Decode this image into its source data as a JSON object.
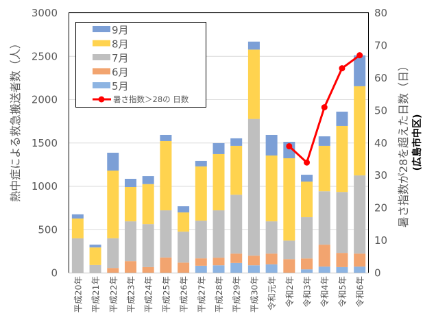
{
  "chart_data": {
    "type": "bar",
    "stacked": true,
    "title": "",
    "ylabel": "熱中症による救急搬送者数（人）",
    "y2label": "暑さ指数が28を超えた日数（日）",
    "y2sublabel": "(広島市中区)",
    "ylim": [
      0,
      3000
    ],
    "y2lim": [
      0,
      80
    ],
    "yticks": [
      "0",
      "500",
      "1000",
      "1500",
      "2000",
      "2500",
      "3000"
    ],
    "y2ticks": [
      "0",
      "10",
      "20",
      "30",
      "40",
      "50",
      "60",
      "70",
      "80"
    ],
    "grid": true,
    "legend_position": "top-left",
    "categories": [
      "平成20年",
      "平成21年",
      "平成22年",
      "平成23年",
      "平成24年",
      "平成25年",
      "平成26年",
      "平成27年",
      "平成28年",
      "平成29年",
      "平成30年",
      "令和元年",
      "令和2年",
      "令和3年",
      "令和4年",
      "令和5年",
      "令和6年"
    ],
    "series": [
      {
        "name": "5月",
        "color": "#8db4e2",
        "values": [
          0,
          0,
          0,
          0,
          0,
          0,
          0,
          84,
          89,
          116,
          89,
          100,
          0,
          42,
          74,
          68,
          74
        ]
      },
      {
        "name": "6月",
        "color": "#f2a46f",
        "values": [
          0,
          0,
          58,
          137,
          68,
          179,
          120,
          85,
          88,
          108,
          111,
          124,
          160,
          126,
          253,
          164,
          150
        ]
      },
      {
        "name": "7月",
        "color": "#bfbfbf",
        "values": [
          400,
          92,
          343,
          459,
          496,
          544,
          357,
          435,
          546,
          679,
          1578,
          372,
          214,
          476,
          616,
          703,
          902
        ]
      },
      {
        "name": "8月",
        "color": "#ffd34f",
        "values": [
          229,
          203,
          781,
          396,
          462,
          799,
          222,
          626,
          649,
          564,
          800,
          760,
          950,
          411,
          524,
          761,
          1029
        ]
      },
      {
        "name": "9月",
        "color": "#7c9fd6",
        "values": [
          48,
          32,
          206,
          95,
          92,
          71,
          71,
          63,
          126,
          87,
          92,
          237,
          190,
          79,
          110,
          166,
          357
        ]
      }
    ],
    "line_series": {
      "name": "暑さ指数＞28の 日数",
      "color": "#ff0000",
      "axis": "right",
      "categories": [
        "令和2年",
        "令和3年",
        "令和4年",
        "令和5年",
        "令和6年"
      ],
      "values": [
        39,
        34,
        51,
        63,
        67
      ]
    }
  }
}
